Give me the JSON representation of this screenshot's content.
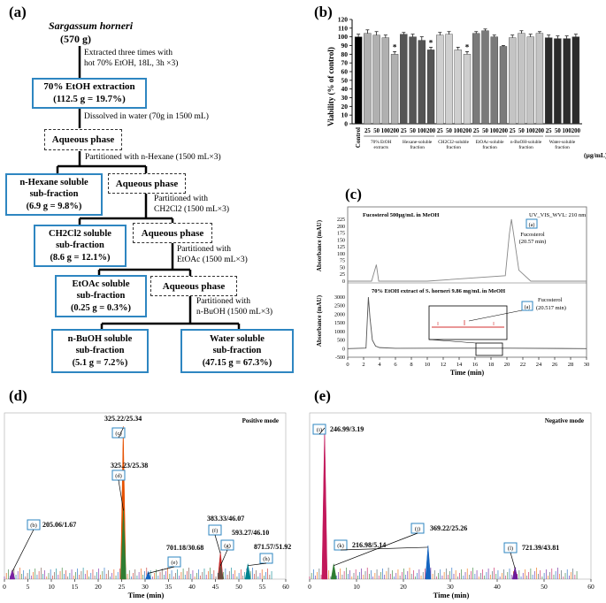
{
  "panel_a": {
    "label": "(a)",
    "source": "Sargassum horneri",
    "source_mass": "(570 g)",
    "step1_line1": "Extracted three times with",
    "step1_line2": "hot 70% EtOH, 18L, 3h ×3)",
    "etoh_box_line1": "70% EtOH extraction",
    "etoh_box_line2": "(112.5 g = 19.7%)",
    "step2": "Dissolved in water (70g in 1500 mL)",
    "aqueous": "Aqueous phase",
    "step3": "Partitioned with n-Hexane (1500 mL×3)",
    "hexane_line1": "n-Hexane soluble",
    "hexane_line2": "sub-fraction",
    "hexane_line3": "(6.9 g = 9.8%)",
    "step4_line1": "Partitioned with",
    "step4_line2": "CH2Cl2 (1500 mL×3)",
    "ch2cl2_line1": "CH2Cl2 soluble",
    "ch2cl2_line2": "sub-fraction",
    "ch2cl2_line3": "(8.6 g = 12.1%)",
    "step5_line1": "Partitioned with",
    "step5_line2": "EtOAc (1500 mL×3)",
    "etoac_line1": "EtOAc soluble",
    "etoac_line2": "sub-fraction",
    "etoac_line3": "(0.25 g = 0.3%)",
    "step6_line1": "Partitioned with",
    "step6_line2": "n-BuOH (1500 mL×3)",
    "buoh_line1": "n-BuOH soluble",
    "buoh_line2": "sub-fraction",
    "buoh_line3": "(5.1 g = 7.2%)",
    "water_line1": "Water soluble",
    "water_line2": "sub-fraction",
    "water_line3": "(47.15 g = 67.3%)"
  },
  "panel_b": {
    "label": "(b)",
    "ylabel": "Viability (% of control)",
    "yticks": [
      "0",
      "10",
      "20",
      "30",
      "40",
      "50",
      "60",
      "70",
      "80",
      "90",
      "100",
      "110",
      "120"
    ],
    "unit": "(µg/mL)",
    "control_label": "Control",
    "dose_labels": [
      "25",
      "50",
      "100",
      "200"
    ],
    "group_labels": [
      [
        "70% EtOH",
        "extracts"
      ],
      [
        "Hexane-soluble",
        "fraction"
      ],
      [
        "CH2Cl2-soluble",
        "fraction"
      ],
      [
        "EtOAc-soluble",
        "fraction"
      ],
      [
        "n-BuOH-soluble",
        "fraction"
      ],
      [
        "Water-soluble",
        "fraction"
      ]
    ],
    "star": "*"
  },
  "panel_c": {
    "label": "(c)",
    "top_title": "Fucosterol 500µg/mL in MeOH",
    "detector": "UV_VIS_WVL: 210 nm",
    "top_ylabel": "Absorbance (mAU)",
    "top_yticks": [
      "225",
      "200",
      "175",
      "150",
      "125",
      "100",
      "75",
      "50",
      "25",
      "0"
    ],
    "peak_tag": "(a)",
    "fuco_name": "Fucosterol",
    "fuco_rt_top": "(20.57 min)",
    "bottom_title": "70% EtOH extract of S. horneri 9.86 mg/mL in MeOH",
    "bottom_ylabel": "Absorbance (mAU)",
    "bottom_yticks": [
      "3000",
      "2500",
      "2000",
      "1500",
      "1000",
      "500",
      "0",
      "-500"
    ],
    "fuco_rt_bottom": "(20.517 min)",
    "xlabel": "Time (min)",
    "xticks": [
      "0",
      "2",
      "4",
      "6",
      "8",
      "10",
      "12",
      "14",
      "16",
      "18",
      "20",
      "22",
      "24",
      "26",
      "28",
      "30"
    ]
  },
  "panel_d": {
    "label": "(d)",
    "mode": "Positive mode",
    "xlabel": "Time (min)",
    "xticks": [
      "0",
      "5",
      "10",
      "15",
      "20",
      "25",
      "30",
      "35",
      "40",
      "45",
      "50",
      "55",
      "60"
    ],
    "peaks": [
      {
        "tag": "(b)",
        "text": "205.06/1.67"
      },
      {
        "tag": "(c)",
        "text": "325.22/25.34"
      },
      {
        "tag": "(d)",
        "text": "325.23/25.38"
      },
      {
        "tag": "(e)",
        "text": "701.18/30.68"
      },
      {
        "tag": "(f)",
        "text": "383.33/46.07"
      },
      {
        "tag": "(g)",
        "text": "593.27/46.10"
      },
      {
        "tag": "(h)",
        "text": "871.57/51.92"
      }
    ]
  },
  "panel_e": {
    "label": "(e)",
    "mode": "Negative mode",
    "xlabel": "Time (min)",
    "xticks": [
      "0",
      "10",
      "20",
      "30",
      "40",
      "50",
      "60"
    ],
    "peaks": [
      {
        "tag": "(i)",
        "text": "246.99/3.19"
      },
      {
        "tag": "(j)",
        "text": "369.22/25.26"
      },
      {
        "tag": "(k)",
        "text": "216.98/5.14"
      },
      {
        "tag": "(l)",
        "text": "721.39/43.81"
      }
    ]
  },
  "chart_data": [
    {
      "type": "bar",
      "title": "(b)",
      "ylabel": "Viability (% of control)",
      "ylim": [
        0,
        120
      ],
      "categories": [
        "Control",
        "EtOH 25",
        "EtOH 50",
        "EtOH 100",
        "EtOH 200",
        "Hex 25",
        "Hex 50",
        "Hex 100",
        "Hex 200",
        "CH2Cl2 25",
        "CH2Cl2 50",
        "CH2Cl2 100",
        "CH2Cl2 200",
        "EtOAc 25",
        "EtOAc 50",
        "EtOAc 100",
        "EtOAc 200",
        "BuOH 25",
        "BuOH 50",
        "BuOH 100",
        "BuOH 200",
        "Water 25",
        "Water 50",
        "Water 100",
        "Water 200"
      ],
      "values": [
        100,
        104,
        102,
        99,
        80,
        103,
        100,
        96,
        85,
        102,
        103,
        85,
        80,
        104,
        107,
        100,
        89,
        99,
        104,
        100,
        104,
        99,
        98,
        98,
        100
      ],
      "errors": [
        3,
        4,
        4,
        3,
        3,
        2,
        3,
        4,
        3,
        3,
        3,
        3,
        3,
        2,
        2,
        2,
        1,
        3,
        3,
        3,
        2,
        3,
        3,
        3,
        3
      ],
      "significant": [
        false,
        false,
        false,
        false,
        true,
        false,
        false,
        false,
        true,
        false,
        false,
        false,
        true,
        false,
        false,
        false,
        false,
        false,
        false,
        false,
        false,
        false,
        false,
        false,
        false
      ]
    },
    {
      "type": "line",
      "title": "HPLC chromatograms (c)",
      "xlabel": "Time (min)",
      "xlim": [
        0,
        30
      ],
      "series": [
        {
          "name": "Fucosterol 500µg/mL",
          "x": [
            0,
            3,
            3.6,
            3.9,
            4.5,
            10,
            19.8,
            20.3,
            20.57,
            20.9,
            21.5,
            23,
            30
          ],
          "y": [
            0,
            0,
            60,
            0,
            0,
            0,
            20,
            170,
            225,
            160,
            40,
            0,
            0
          ],
          "ylim": [
            0,
            225
          ]
        },
        {
          "name": "70% EtOH extract 9.86 mg/mL",
          "x": [
            0,
            2.3,
            2.6,
            2.8,
            3.1,
            3.5,
            4,
            6,
            20.517,
            30
          ],
          "y": [
            0,
            30,
            3000,
            1800,
            500,
            150,
            60,
            20,
            25,
            0
          ],
          "ylim": [
            -500,
            3000
          ]
        }
      ]
    },
    {
      "type": "line",
      "title": "Positive mode (d)",
      "xlabel": "Time (min)",
      "xlim": [
        0,
        60
      ],
      "peaks": [
        {
          "x": 1.67,
          "label": "205.06/1.67",
          "rel": 0.06
        },
        {
          "x": 25.34,
          "label": "325.22/25.34",
          "rel": 1.0
        },
        {
          "x": 25.38,
          "label": "325.23/25.38",
          "rel": 0.46
        },
        {
          "x": 30.68,
          "label": "701.18/30.68",
          "rel": 0.05
        },
        {
          "x": 46.07,
          "label": "383.33/46.07",
          "rel": 0.18
        },
        {
          "x": 46.1,
          "label": "593.27/46.10",
          "rel": 0.1
        },
        {
          "x": 51.92,
          "label": "871.57/51.92",
          "rel": 0.1
        }
      ]
    },
    {
      "type": "line",
      "title": "Negative mode (e)",
      "xlabel": "Time (min)",
      "xlim": [
        0,
        60
      ],
      "peaks": [
        {
          "x": 3.19,
          "label": "246.99/3.19",
          "rel": 1.0
        },
        {
          "x": 5.14,
          "label": "216.98/5.14",
          "rel": 0.1
        },
        {
          "x": 25.26,
          "label": "369.22/25.26",
          "rel": 0.22
        },
        {
          "x": 43.81,
          "label": "721.39/43.81",
          "rel": 0.08
        }
      ]
    }
  ]
}
